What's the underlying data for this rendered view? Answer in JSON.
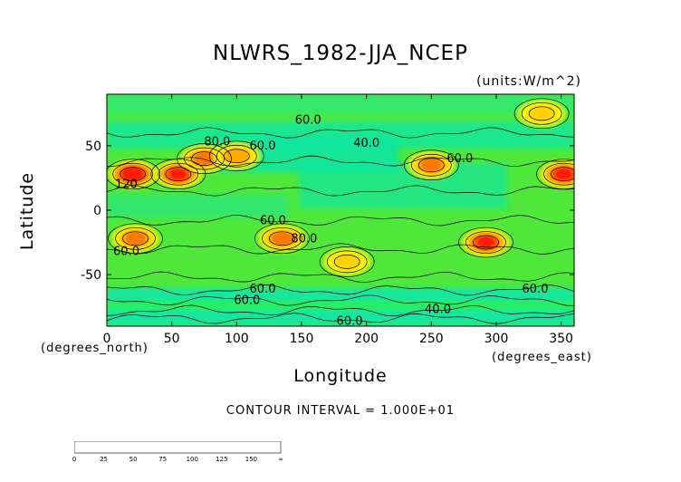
{
  "chart_data": {
    "type": "heatmap",
    "title": "NLWRS_1982-JJA_NCEP",
    "units": "(units:W/m^2)",
    "xlabel": "Longitude",
    "ylabel": "Latitude",
    "x_unit_label": "(degrees_east)",
    "y_unit_label": "(degrees_north)",
    "xlim": [
      0,
      360
    ],
    "ylim": [
      -90,
      90
    ],
    "x_ticks": [
      0,
      50,
      100,
      150,
      200,
      250,
      300,
      350
    ],
    "y_ticks": [
      -50,
      0,
      50
    ],
    "contour_interval_text": "CONTOUR INTERVAL = 1.000E+01",
    "contour_labels": [
      {
        "text": "60.0",
        "lon": 155,
        "lat": 70
      },
      {
        "text": "80.0",
        "lon": 85,
        "lat": 53
      },
      {
        "text": "60.0",
        "lon": 120,
        "lat": 50
      },
      {
        "text": "40.0",
        "lon": 200,
        "lat": 52
      },
      {
        "text": "60.0",
        "lon": 272,
        "lat": 40
      },
      {
        "text": "120",
        "lon": 15,
        "lat": 20
      },
      {
        "text": "60.0",
        "lon": 128,
        "lat": -8
      },
      {
        "text": "80.0",
        "lon": 152,
        "lat": -22
      },
      {
        "text": "60.0",
        "lon": 15,
        "lat": -32
      },
      {
        "text": "60.0",
        "lon": 120,
        "lat": -61
      },
      {
        "text": "60.0",
        "lon": 108,
        "lat": -70
      },
      {
        "text": "60.0",
        "lon": 330,
        "lat": -61
      },
      {
        "text": "40.0",
        "lon": 255,
        "lat": -77
      },
      {
        "text": "60.0",
        "lon": 187,
        "lat": -86
      }
    ],
    "hotspots": [
      {
        "lon": 20,
        "lat": 28,
        "value": 145
      },
      {
        "lon": 55,
        "lat": 28,
        "value": 135
      },
      {
        "lon": 75,
        "lat": 40,
        "value": 110
      },
      {
        "lon": 100,
        "lat": 42,
        "value": 95
      },
      {
        "lon": 250,
        "lat": 35,
        "value": 110
      },
      {
        "lon": 352,
        "lat": 28,
        "value": 135
      },
      {
        "lon": 22,
        "lat": -22,
        "value": 110
      },
      {
        "lon": 135,
        "lat": -22,
        "value": 115
      },
      {
        "lon": 292,
        "lat": -25,
        "value": 140
      },
      {
        "lon": 335,
        "lat": 75,
        "value": 90
      },
      {
        "lon": 185,
        "lat": -40,
        "value": 85
      }
    ],
    "colorbar": {
      "levels": [
        "0",
        "25",
        "50",
        "75",
        "100",
        "125",
        "150",
        "∞"
      ],
      "colors": [
        "#19a0ff",
        "#0fc8d2",
        "#12e6a0",
        "#28f05a",
        "#8cf50a",
        "#d2f500",
        "#ffff00",
        "#ffd200",
        "#ffaa00",
        "#ff7800",
        "#ff4b00",
        "#ff1e00"
      ]
    }
  }
}
